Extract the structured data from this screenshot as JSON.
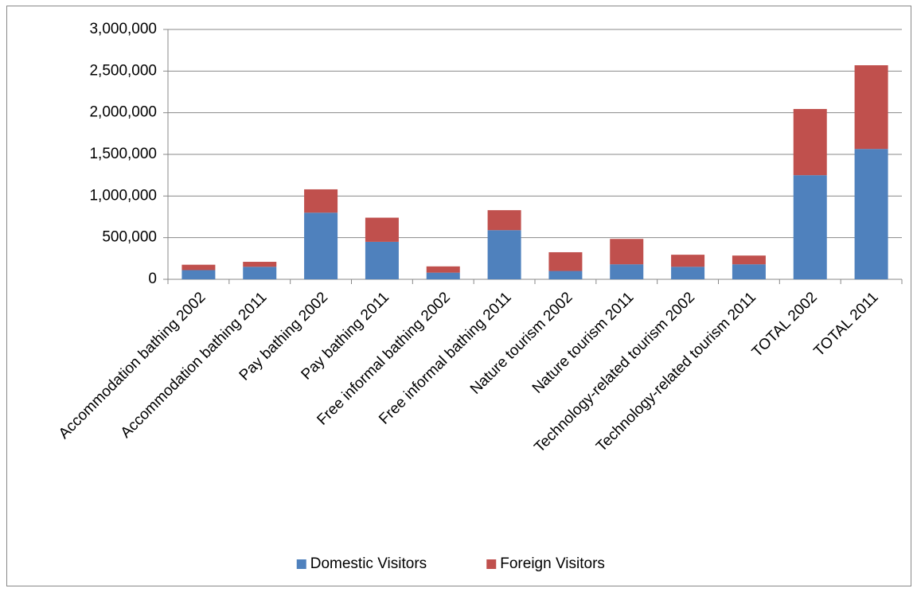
{
  "chart_data": {
    "type": "stacked_bar",
    "categories": [
      "Accommodation bathing 2002",
      "Accommodation bathing 2011",
      "Pay bathing 2002",
      "Pay bathing 2011",
      "Free informal bathing 2002",
      "Free informal bathing 2011",
      "Nature tourism 2002",
      "Nature tourism 2011",
      "Technology-related tourism 2002",
      "Technology-related tourism 2011",
      "TOTAL 2002",
      "TOTAL 2011"
    ],
    "series": [
      {
        "name": "Domestic Visitors",
        "color": "#4f81bd",
        "values": [
          110000,
          150000,
          800000,
          450000,
          80000,
          590000,
          100000,
          180000,
          150000,
          180000,
          1250000,
          1565000
        ]
      },
      {
        "name": "Foreign Visitors",
        "color": "#c0504d",
        "values": [
          65000,
          60000,
          280000,
          290000,
          75000,
          240000,
          225000,
          305000,
          145000,
          105000,
          795000,
          1005000
        ]
      }
    ],
    "ylim": [
      0,
      3000000
    ],
    "yticks": [
      0,
      {
        "value": 500000,
        "label": "500,000"
      },
      {
        "value": 1000000,
        "label": "1,000,000"
      },
      {
        "value": 1500000,
        "label": "1,500,000"
      },
      {
        "value": 2000000,
        "label": "2,000,000"
      },
      {
        "value": 2500000,
        "label": "2,500,000"
      },
      {
        "value": 3000000,
        "label": "3,000,000"
      }
    ],
    "grid": true,
    "legend": "bottom"
  }
}
